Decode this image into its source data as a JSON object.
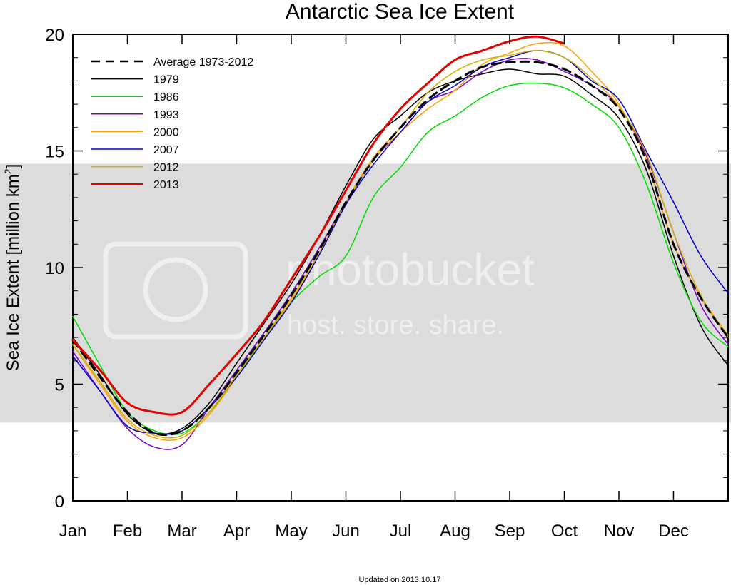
{
  "chart_data": {
    "type": "line",
    "title": "Antarctic Sea Ice Extent",
    "xlabel": "",
    "ylabel": "Sea Ice Extent [million km²]",
    "ylabel_main": "Sea Ice Extent [million km",
    "ylabel_sup": "2",
    "ylabel_tail": "]",
    "xlim": [
      0,
      12
    ],
    "ylim": [
      0,
      20
    ],
    "y_ticks": [
      0,
      5,
      10,
      15,
      20
    ],
    "month_labels": [
      "Jan",
      "Feb",
      "Mar",
      "Apr",
      "May",
      "Jun",
      "Jul",
      "Aug",
      "Sep",
      "Oct",
      "Nov",
      "Dec"
    ],
    "grid": false,
    "legend_position": "top-left",
    "shaded_band": {
      "y_low": 3.35,
      "y_high": 14.45,
      "color": "#dcdcdc"
    },
    "x": [
      0,
      0.5,
      1,
      1.5,
      2,
      2.5,
      3,
      3.5,
      4,
      4.5,
      5,
      5.5,
      6,
      6.5,
      7,
      7.5,
      8,
      8.5,
      9,
      9.5,
      10,
      10.5,
      11,
      11.5,
      12
    ],
    "series": [
      {
        "name": "Average 1973-2012",
        "color": "#000000",
        "dash": true,
        "width": 3,
        "values": [
          6.9,
          5.3,
          3.8,
          2.9,
          3.0,
          4.0,
          5.5,
          7.1,
          8.8,
          10.7,
          12.8,
          14.6,
          16.0,
          17.2,
          18.0,
          18.6,
          18.8,
          18.8,
          18.5,
          17.8,
          16.8,
          14.6,
          11.0,
          8.7,
          7.0
        ]
      },
      {
        "name": "1979",
        "color": "#000000",
        "dash": false,
        "width": 1.5,
        "values": [
          7.0,
          5.4,
          3.7,
          2.9,
          3.1,
          4.2,
          5.9,
          7.6,
          9.3,
          11.3,
          13.5,
          15.5,
          16.5,
          17.5,
          18.0,
          18.3,
          18.5,
          18.3,
          18.2,
          17.4,
          16.4,
          14.2,
          10.5,
          7.5,
          5.8
        ]
      },
      {
        "name": "1986",
        "color": "#00dd00",
        "dash": false,
        "width": 1.5,
        "values": [
          7.9,
          5.8,
          3.8,
          3.0,
          2.9,
          3.8,
          5.3,
          7.0,
          8.5,
          9.6,
          10.5,
          13.0,
          14.3,
          15.8,
          16.5,
          17.3,
          17.8,
          17.9,
          17.7,
          17.0,
          16.0,
          13.6,
          10.2,
          7.7,
          6.6
        ]
      },
      {
        "name": "1993",
        "color": "#7a00c8",
        "dash": false,
        "width": 1.5,
        "values": [
          6.4,
          4.7,
          3.1,
          2.3,
          2.4,
          4.0,
          5.6,
          7.2,
          8.9,
          10.8,
          12.8,
          14.6,
          15.8,
          17.1,
          17.6,
          18.4,
          18.9,
          18.9,
          18.4,
          17.8,
          16.9,
          14.8,
          11.5,
          8.4,
          6.7
        ]
      },
      {
        "name": "2000",
        "color": "#ffa000",
        "dash": false,
        "width": 1.5,
        "values": [
          6.7,
          5.0,
          3.4,
          2.7,
          2.7,
          3.7,
          5.3,
          6.9,
          8.6,
          10.5,
          12.7,
          14.6,
          15.8,
          16.8,
          17.6,
          18.7,
          19.2,
          19.6,
          19.5,
          18.4,
          17.0,
          14.6,
          11.0,
          8.7,
          7.0
        ]
      },
      {
        "name": "2007",
        "color": "#0000cc",
        "dash": false,
        "width": 1.5,
        "values": [
          6.2,
          4.7,
          3.2,
          2.9,
          3.0,
          4.0,
          5.3,
          6.9,
          8.5,
          10.5,
          12.7,
          14.4,
          15.8,
          17.1,
          17.8,
          18.6,
          19.0,
          19.3,
          19.0,
          18.0,
          17.2,
          15.0,
          12.8,
          10.5,
          8.9
        ]
      },
      {
        "name": "2012",
        "color": "#d4b000",
        "dash": false,
        "width": 1.5,
        "values": [
          6.7,
          5.1,
          3.5,
          2.8,
          2.8,
          3.8,
          5.4,
          7.0,
          8.7,
          10.6,
          12.8,
          14.7,
          16.0,
          17.5,
          18.4,
          18.9,
          19.1,
          19.3,
          19.0,
          18.1,
          16.9,
          14.9,
          11.5,
          8.8,
          7.1
        ]
      },
      {
        "name": "2013",
        "color": "#e60000",
        "dash": false,
        "width": 3,
        "values": [
          6.9,
          5.6,
          4.2,
          3.8,
          3.8,
          5.0,
          6.3,
          7.7,
          9.5,
          11.3,
          13.3,
          15.3,
          16.8,
          17.9,
          18.9,
          19.3,
          19.7,
          19.9,
          19.6,
          null,
          null,
          null,
          null,
          null,
          null
        ]
      }
    ]
  },
  "watermark": {
    "main": "photobucket",
    "sub": "host. store. share."
  },
  "footer": {
    "updated": "Updated on 2013.10.17"
  }
}
